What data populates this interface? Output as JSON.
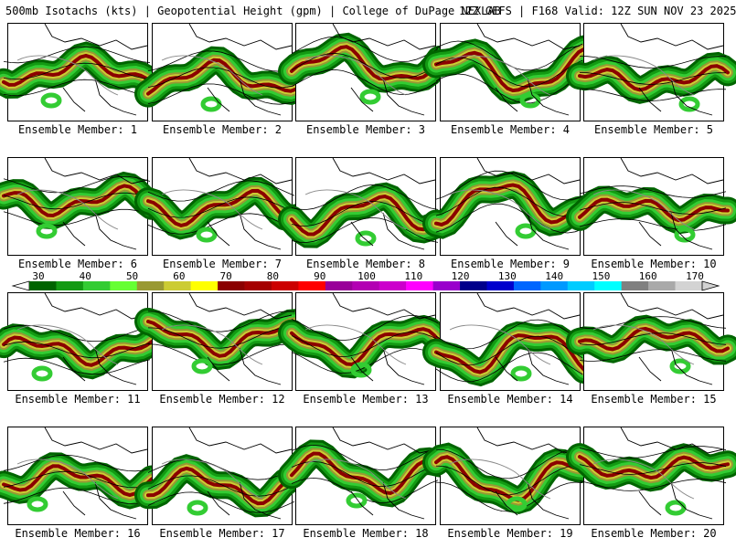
{
  "header": {
    "left": "500mb Isotachs (kts) | Geopotential Height (gpm) | College of DuPage NEXLAB",
    "right": "12Z GEFS | F168 Valid: 12Z SUN NOV 23 2025"
  },
  "colorbar": {
    "ticks": [
      "30",
      "40",
      "50",
      "60",
      "70",
      "80",
      "90",
      "100",
      "110",
      "120",
      "130",
      "140",
      "150",
      "160",
      "170"
    ],
    "colors": [
      "#006400",
      "#139a13",
      "#33cc33",
      "#66ff33",
      "#999933",
      "#cccc33",
      "#ffff00",
      "#8b0000",
      "#a50000",
      "#cc0000",
      "#ff0000",
      "#990099",
      "#b300b3",
      "#cc00cc",
      "#ff00ff",
      "#9900cc",
      "#00008b",
      "#0000cd",
      "#0066ff",
      "#0099ff",
      "#00ccff",
      "#00ffff",
      "#808080",
      "#a9a9a9",
      "#d3d3d3"
    ]
  },
  "members": [
    {
      "label": "Ensemble Member: 1"
    },
    {
      "label": "Ensemble Member: 2"
    },
    {
      "label": "Ensemble Member: 3"
    },
    {
      "label": "Ensemble Member: 4"
    },
    {
      "label": "Ensemble Member: 5"
    },
    {
      "label": "Ensemble Member: 6"
    },
    {
      "label": "Ensemble Member: 7"
    },
    {
      "label": "Ensemble Member: 8"
    },
    {
      "label": "Ensemble Member: 9"
    },
    {
      "label": "Ensemble Member: 10"
    },
    {
      "label": "Ensemble Member: 11"
    },
    {
      "label": "Ensemble Member: 12"
    },
    {
      "label": "Ensemble Member: 13"
    },
    {
      "label": "Ensemble Member: 14"
    },
    {
      "label": "Ensemble Member: 15"
    },
    {
      "label": "Ensemble Member: 16"
    },
    {
      "label": "Ensemble Member: 17"
    },
    {
      "label": "Ensemble Member: 18"
    },
    {
      "label": "Ensemble Member: 19"
    },
    {
      "label": "Ensemble Member: 20"
    }
  ]
}
